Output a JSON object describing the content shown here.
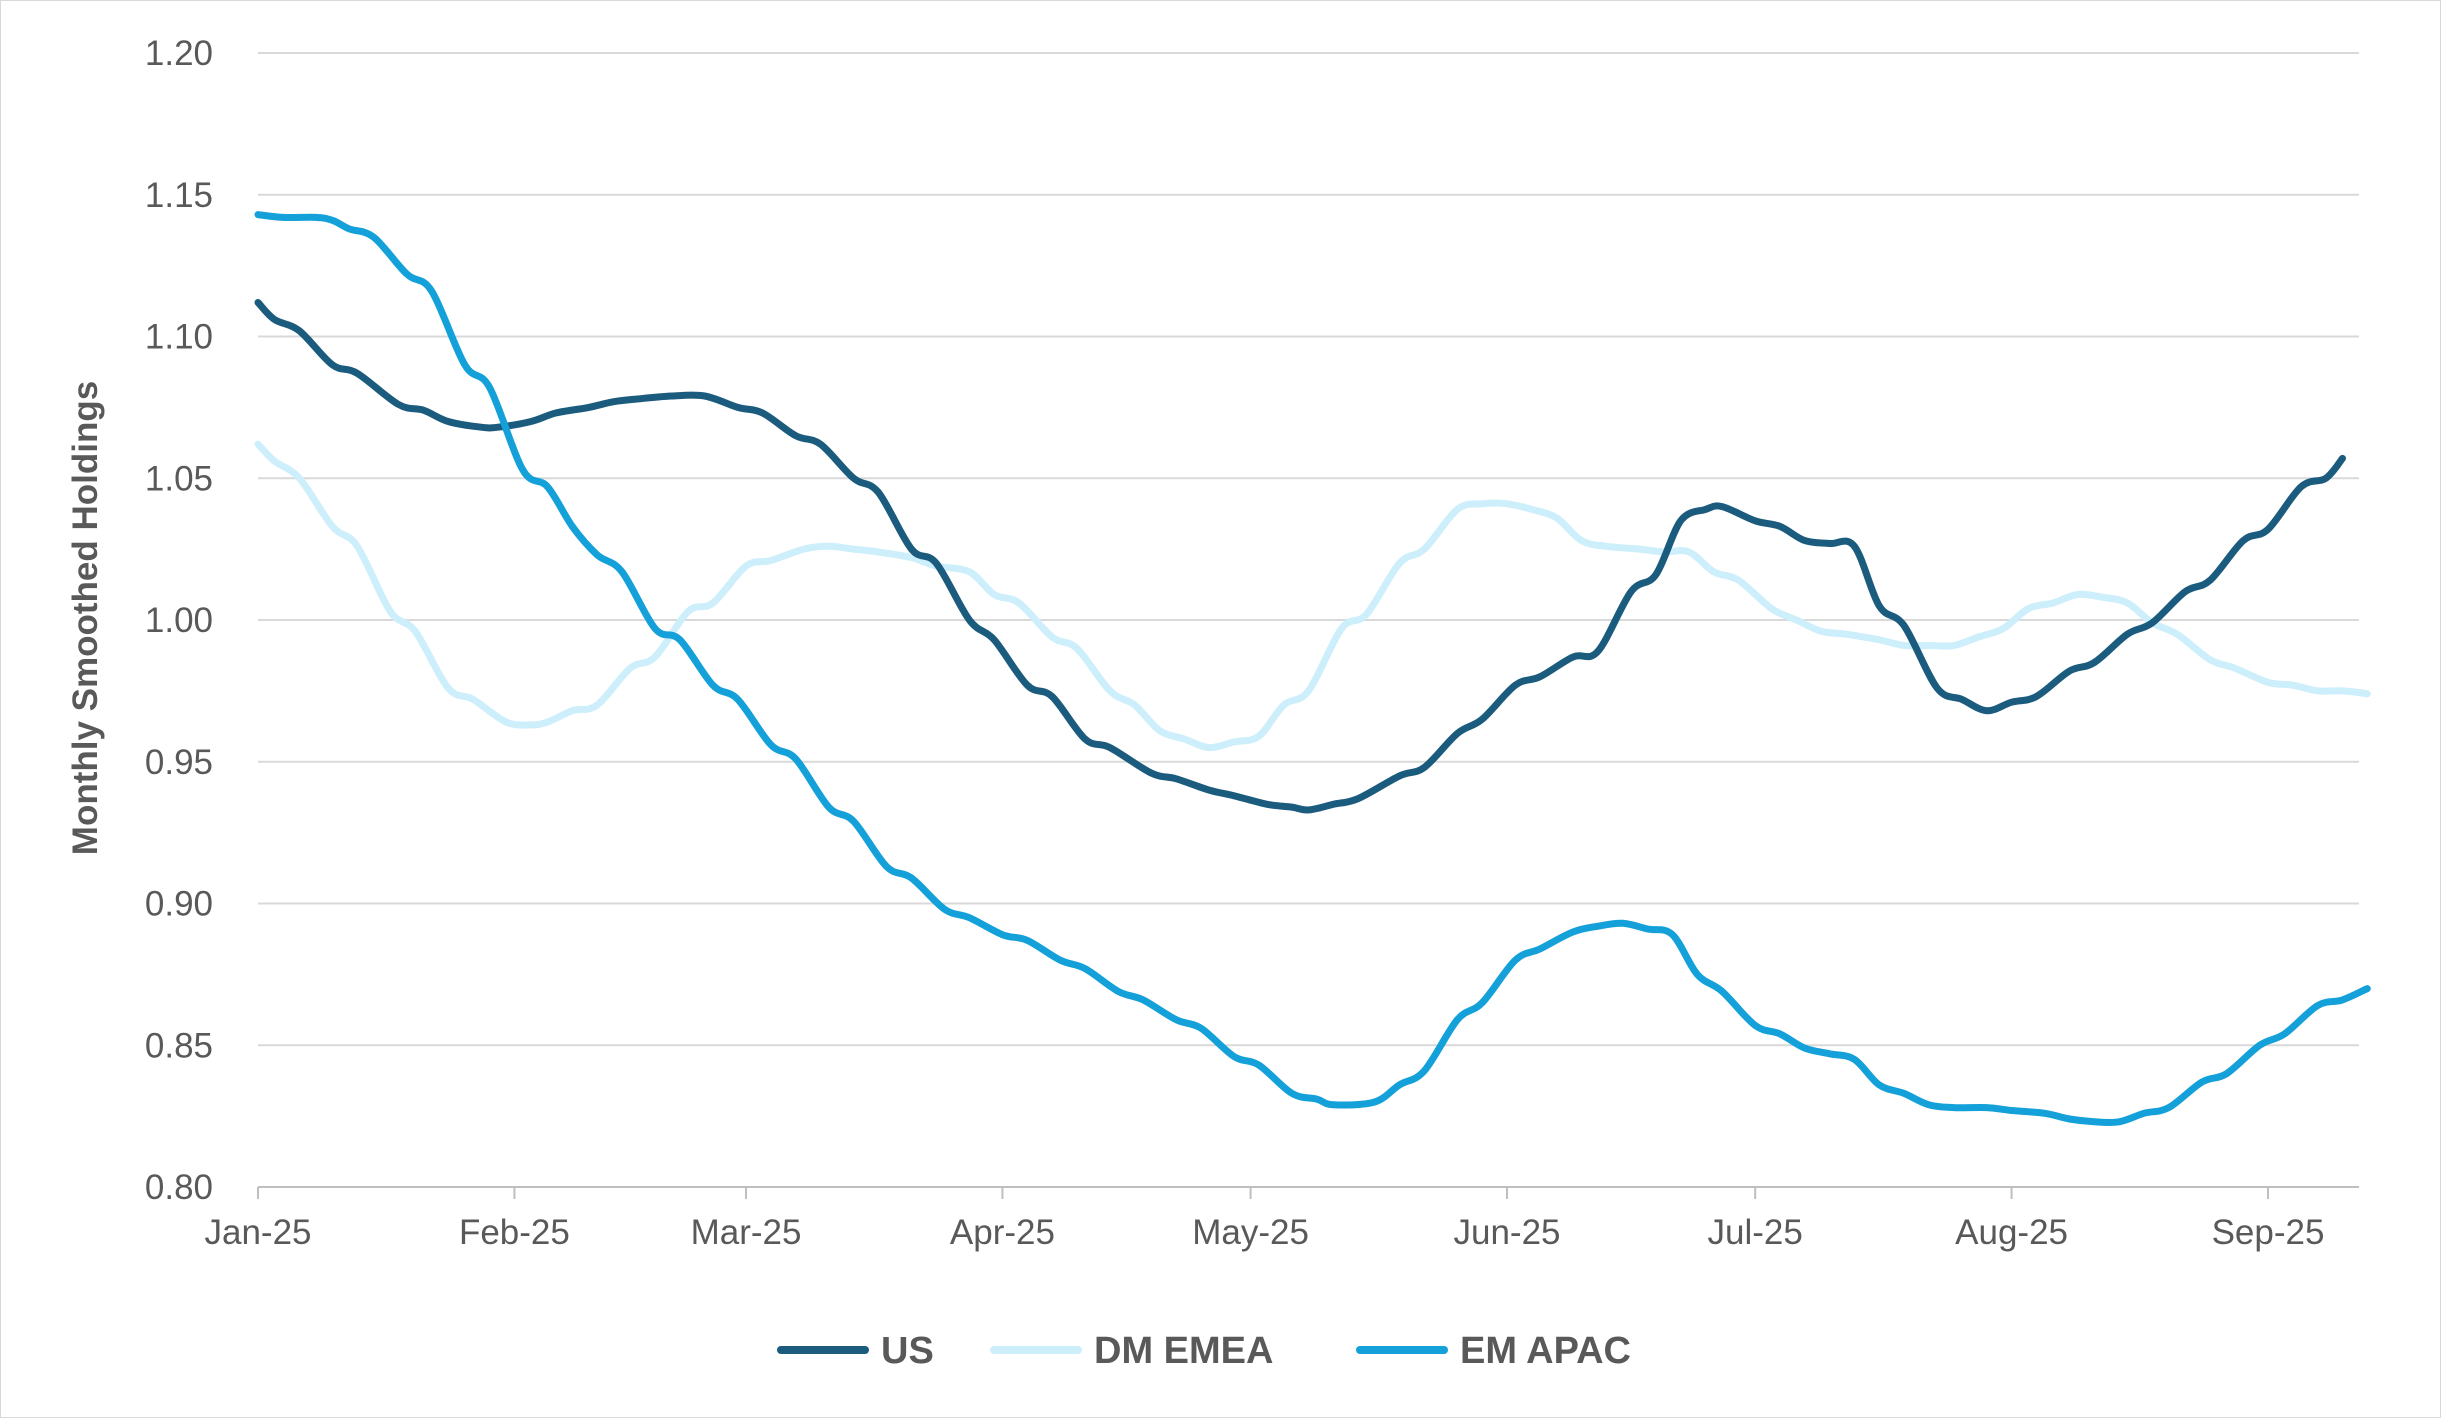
{
  "chart_data": {
    "type": "line",
    "title": "",
    "xlabel": "",
    "ylabel": "Monthly Smoothed Holdings",
    "ylim": [
      0.8,
      1.2
    ],
    "y_ticks": [
      "0.80",
      "0.85",
      "0.90",
      "0.95",
      "1.00",
      "1.05",
      "1.10",
      "1.15",
      "1.20"
    ],
    "x_ticks": [
      "Jan-25",
      "Feb-25",
      "Mar-25",
      "Apr-25",
      "May-25",
      "Jun-25",
      "Jul-25",
      "Aug-25",
      "Sep-25"
    ],
    "x_tick_days": [
      0,
      31,
      59,
      90,
      120,
      151,
      181,
      212,
      243
    ],
    "grid": "horizontal",
    "legend": "bottom-center",
    "series": [
      {
        "name": "US",
        "color": "#1a5b7e",
        "points": [
          [
            0,
            1.112
          ],
          [
            2,
            1.106
          ],
          [
            5,
            1.102
          ],
          [
            9,
            1.09
          ],
          [
            12,
            1.087
          ],
          [
            17,
            1.076
          ],
          [
            20,
            1.074
          ],
          [
            23,
            1.07
          ],
          [
            27,
            1.068
          ],
          [
            29,
            1.068
          ],
          [
            33,
            1.07
          ],
          [
            36,
            1.073
          ],
          [
            40,
            1.075
          ],
          [
            43,
            1.077
          ],
          [
            46,
            1.078
          ],
          [
            50,
            1.079
          ],
          [
            54,
            1.079
          ],
          [
            58,
            1.075
          ],
          [
            61,
            1.073
          ],
          [
            65,
            1.065
          ],
          [
            68,
            1.062
          ],
          [
            72,
            1.05
          ],
          [
            75,
            1.045
          ],
          [
            79,
            1.025
          ],
          [
            82,
            1.02
          ],
          [
            86,
            1.0
          ],
          [
            89,
            0.993
          ],
          [
            93,
            0.977
          ],
          [
            96,
            0.973
          ],
          [
            100,
            0.958
          ],
          [
            103,
            0.955
          ],
          [
            108,
            0.946
          ],
          [
            111,
            0.944
          ],
          [
            115,
            0.94
          ],
          [
            118,
            0.938
          ],
          [
            122,
            0.935
          ],
          [
            125,
            0.934
          ],
          [
            127,
            0.933
          ],
          [
            130,
            0.935
          ],
          [
            133,
            0.937
          ],
          [
            138,
            0.945
          ],
          [
            141,
            0.948
          ],
          [
            145,
            0.96
          ],
          [
            148,
            0.965
          ],
          [
            152,
            0.977
          ],
          [
            155,
            0.98
          ],
          [
            159,
            0.987
          ],
          [
            162,
            0.989
          ],
          [
            166,
            1.01
          ],
          [
            169,
            1.016
          ],
          [
            172,
            1.035
          ],
          [
            175,
            1.039
          ],
          [
            177,
            1.04
          ],
          [
            181,
            1.035
          ],
          [
            184,
            1.033
          ],
          [
            187,
            1.028
          ],
          [
            190,
            1.027
          ],
          [
            193,
            1.026
          ],
          [
            196,
            1.005
          ],
          [
            199,
            0.998
          ],
          [
            203,
            0.976
          ],
          [
            206,
            0.972
          ],
          [
            209,
            0.968
          ],
          [
            212,
            0.971
          ],
          [
            215,
            0.973
          ],
          [
            219,
            0.982
          ],
          [
            222,
            0.985
          ],
          [
            226,
            0.995
          ],
          [
            229,
            0.999
          ],
          [
            233,
            1.01
          ],
          [
            236,
            1.014
          ],
          [
            240,
            1.028
          ],
          [
            243,
            1.032
          ],
          [
            247,
            1.047
          ],
          [
            250,
            1.05
          ],
          [
            252,
            1.057
          ]
        ]
      },
      {
        "name": "DM EMEA",
        "color": "#cdeefb",
        "points": [
          [
            0,
            1.062
          ],
          [
            2,
            1.056
          ],
          [
            5,
            1.05
          ],
          [
            9,
            1.033
          ],
          [
            12,
            1.026
          ],
          [
            16,
            1.003
          ],
          [
            19,
            0.996
          ],
          [
            23,
            0.976
          ],
          [
            26,
            0.972
          ],
          [
            30,
            0.964
          ],
          [
            33,
            0.963
          ],
          [
            35,
            0.964
          ],
          [
            38,
            0.968
          ],
          [
            41,
            0.97
          ],
          [
            45,
            0.983
          ],
          [
            48,
            0.987
          ],
          [
            52,
            1.003
          ],
          [
            55,
            1.006
          ],
          [
            59,
            1.019
          ],
          [
            62,
            1.021
          ],
          [
            66,
            1.025
          ],
          [
            69,
            1.026
          ],
          [
            72,
            1.025
          ],
          [
            75,
            1.024
          ],
          [
            79,
            1.022
          ],
          [
            82,
            1.019
          ],
          [
            86,
            1.017
          ],
          [
            89,
            1.009
          ],
          [
            92,
            1.006
          ],
          [
            96,
            0.994
          ],
          [
            99,
            0.99
          ],
          [
            103,
            0.975
          ],
          [
            106,
            0.97
          ],
          [
            109,
            0.961
          ],
          [
            112,
            0.958
          ],
          [
            115,
            0.955
          ],
          [
            118,
            0.957
          ],
          [
            121,
            0.959
          ],
          [
            124,
            0.97
          ],
          [
            127,
            0.975
          ],
          [
            131,
            0.997
          ],
          [
            134,
            1.002
          ],
          [
            138,
            1.02
          ],
          [
            141,
            1.025
          ],
          [
            145,
            1.039
          ],
          [
            148,
            1.041
          ],
          [
            151,
            1.041
          ],
          [
            154,
            1.039
          ],
          [
            157,
            1.036
          ],
          [
            160,
            1.028
          ],
          [
            163,
            1.026
          ],
          [
            167,
            1.025
          ],
          [
            170,
            1.024
          ],
          [
            173,
            1.024
          ],
          [
            176,
            1.017
          ],
          [
            179,
            1.014
          ],
          [
            183,
            1.004
          ],
          [
            186,
            1.0
          ],
          [
            189,
            0.996
          ],
          [
            192,
            0.995
          ],
          [
            196,
            0.993
          ],
          [
            199,
            0.991
          ],
          [
            202,
            0.991
          ],
          [
            205,
            0.991
          ],
          [
            208,
            0.994
          ],
          [
            211,
            0.997
          ],
          [
            214,
            1.004
          ],
          [
            217,
            1.006
          ],
          [
            220,
            1.009
          ],
          [
            223,
            1.008
          ],
          [
            226,
            1.006
          ],
          [
            229,
            0.999
          ],
          [
            232,
            0.995
          ],
          [
            236,
            0.986
          ],
          [
            239,
            0.983
          ],
          [
            243,
            0.978
          ],
          [
            246,
            0.977
          ],
          [
            249,
            0.975
          ],
          [
            252,
            0.975
          ],
          [
            255,
            0.974
          ]
        ]
      },
      {
        "name": "EM APAC",
        "color": "#14a0d9",
        "points": [
          [
            0,
            1.143
          ],
          [
            3,
            1.142
          ],
          [
            7,
            1.142
          ],
          [
            9,
            1.141
          ],
          [
            11,
            1.138
          ],
          [
            14,
            1.135
          ],
          [
            18,
            1.122
          ],
          [
            21,
            1.116
          ],
          [
            25,
            1.09
          ],
          [
            28,
            1.082
          ],
          [
            32,
            1.053
          ],
          [
            35,
            1.047
          ],
          [
            38,
            1.033
          ],
          [
            41,
            1.023
          ],
          [
            44,
            1.017
          ],
          [
            48,
            0.997
          ],
          [
            51,
            0.993
          ],
          [
            55,
            0.977
          ],
          [
            58,
            0.972
          ],
          [
            62,
            0.956
          ],
          [
            65,
            0.951
          ],
          [
            69,
            0.934
          ],
          [
            72,
            0.929
          ],
          [
            76,
            0.913
          ],
          [
            79,
            0.909
          ],
          [
            83,
            0.898
          ],
          [
            86,
            0.895
          ],
          [
            90,
            0.889
          ],
          [
            93,
            0.887
          ],
          [
            97,
            0.88
          ],
          [
            100,
            0.877
          ],
          [
            104,
            0.869
          ],
          [
            107,
            0.866
          ],
          [
            111,
            0.859
          ],
          [
            114,
            0.856
          ],
          [
            118,
            0.846
          ],
          [
            121,
            0.843
          ],
          [
            125,
            0.833
          ],
          [
            128,
            0.831
          ],
          [
            130,
            0.829
          ],
          [
            135,
            0.83
          ],
          [
            138,
            0.836
          ],
          [
            141,
            0.841
          ],
          [
            145,
            0.859
          ],
          [
            148,
            0.865
          ],
          [
            152,
            0.88
          ],
          [
            155,
            0.884
          ],
          [
            159,
            0.89
          ],
          [
            162,
            0.892
          ],
          [
            165,
            0.893
          ],
          [
            168,
            0.891
          ],
          [
            171,
            0.889
          ],
          [
            174,
            0.875
          ],
          [
            177,
            0.869
          ],
          [
            181,
            0.857
          ],
          [
            184,
            0.854
          ],
          [
            187,
            0.849
          ],
          [
            190,
            0.847
          ],
          [
            193,
            0.845
          ],
          [
            196,
            0.836
          ],
          [
            199,
            0.833
          ],
          [
            202,
            0.829
          ],
          [
            205,
            0.828
          ],
          [
            209,
            0.828
          ],
          [
            212,
            0.827
          ],
          [
            216,
            0.826
          ],
          [
            219,
            0.824
          ],
          [
            222,
            0.823
          ],
          [
            225,
            0.823
          ],
          [
            228,
            0.826
          ],
          [
            231,
            0.828
          ],
          [
            235,
            0.837
          ],
          [
            238,
            0.84
          ],
          [
            242,
            0.85
          ],
          [
            245,
            0.854
          ],
          [
            249,
            0.864
          ],
          [
            252,
            0.866
          ],
          [
            255,
            0.87
          ]
        ]
      }
    ]
  }
}
